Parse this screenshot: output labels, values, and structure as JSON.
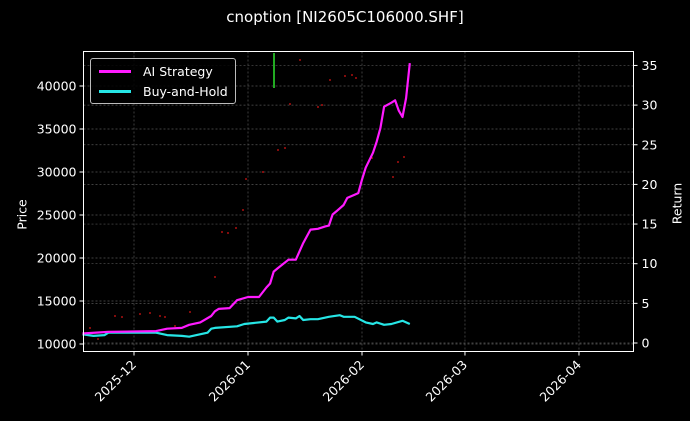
{
  "chart_data": {
    "type": "line",
    "title": "cnoption [NI2605C106000.SHF]",
    "xlabel": "",
    "ylabel": "Price",
    "y2label": "Return",
    "x_tick_labels": [
      "2025-12",
      "2026-01",
      "2026-02",
      "2026-03",
      "2026-04"
    ],
    "y_tick_labels": [
      "10000",
      "15000",
      "20000",
      "25000",
      "30000",
      "35000",
      "40000"
    ],
    "y2_tick_labels": [
      "0",
      "5",
      "10",
      "15",
      "20",
      "25",
      "30",
      "35"
    ],
    "ylim": [
      9200,
      44300
    ],
    "y2lim": [
      -1,
      36.5
    ],
    "grid": true,
    "legend_position": "upper left",
    "colors": {
      "ai_strategy": "#ff1aff",
      "buy_and_hold": "#26e6e6",
      "marker": "#22aa22",
      "scatter": "#aa1111",
      "grid": "#555555",
      "axes": "#ffffff",
      "background": "#000000"
    },
    "series": [
      {
        "name": "AI Strategy",
        "axis": "right",
        "points_date_return": [
          [
            "2025-11-17",
            1.2
          ],
          [
            "2025-11-24",
            1.4
          ],
          [
            "2025-12-07",
            1.5
          ],
          [
            "2025-12-10",
            1.8
          ],
          [
            "2025-12-14",
            1.9
          ],
          [
            "2025-12-16",
            2.3
          ],
          [
            "2025-12-19",
            2.6
          ],
          [
            "2025-12-22",
            3.4
          ],
          [
            "2025-12-23",
            4.0
          ],
          [
            "2025-12-24",
            4.3
          ],
          [
            "2025-12-27",
            4.4
          ],
          [
            "2025-12-29",
            5.4
          ],
          [
            "2026-01-01",
            5.8
          ],
          [
            "2026-01-04",
            5.8
          ],
          [
            "2026-01-06",
            7.0
          ],
          [
            "2026-01-07",
            7.5
          ],
          [
            "2026-01-08",
            9.0
          ],
          [
            "2026-01-09",
            9.4
          ],
          [
            "2026-01-12",
            10.5
          ],
          [
            "2026-01-14",
            10.5
          ],
          [
            "2026-01-16",
            12.6
          ],
          [
            "2026-01-18",
            14.3
          ],
          [
            "2026-01-20",
            14.4
          ],
          [
            "2026-01-22",
            14.7
          ],
          [
            "2026-01-23",
            14.8
          ],
          [
            "2026-01-24",
            16.2
          ],
          [
            "2026-01-25",
            16.6
          ],
          [
            "2026-01-27",
            17.4
          ],
          [
            "2026-01-28",
            18.3
          ],
          [
            "2026-01-30",
            18.7
          ],
          [
            "2026-01-31",
            18.9
          ],
          [
            "2026-02-01",
            20.6
          ],
          [
            "2026-02-02",
            22.1
          ],
          [
            "2026-02-04",
            24.0
          ],
          [
            "2026-02-05",
            25.4
          ],
          [
            "2026-02-06",
            27.1
          ],
          [
            "2026-02-07",
            29.8
          ],
          [
            "2026-02-09",
            30.3
          ],
          [
            "2026-02-10",
            30.6
          ],
          [
            "2026-02-11",
            29.3
          ],
          [
            "2026-02-12",
            28.5
          ],
          [
            "2026-02-13",
            30.9
          ],
          [
            "2026-02-14",
            35.3
          ]
        ]
      },
      {
        "name": "Buy-and-Hold",
        "axis": "right",
        "points_date_return": [
          [
            "2025-11-17",
            1.1
          ],
          [
            "2025-11-20",
            0.9
          ],
          [
            "2025-11-23",
            1.0
          ],
          [
            "2025-11-24",
            1.3
          ],
          [
            "2025-12-07",
            1.3
          ],
          [
            "2025-12-10",
            1.0
          ],
          [
            "2025-12-14",
            0.9
          ],
          [
            "2025-12-16",
            0.8
          ],
          [
            "2025-12-18",
            1.0
          ],
          [
            "2025-12-21",
            1.3
          ],
          [
            "2025-12-22",
            1.8
          ],
          [
            "2025-12-23",
            1.9
          ],
          [
            "2025-12-29",
            2.1
          ],
          [
            "2025-12-31",
            2.4
          ],
          [
            "2026-01-06",
            2.7
          ],
          [
            "2026-01-07",
            3.2
          ],
          [
            "2026-01-08",
            3.2
          ],
          [
            "2026-01-09",
            2.7
          ],
          [
            "2026-01-11",
            2.9
          ],
          [
            "2026-01-12",
            3.2
          ],
          [
            "2026-01-14",
            3.1
          ],
          [
            "2026-01-15",
            3.4
          ],
          [
            "2026-01-16",
            2.9
          ],
          [
            "2026-01-18",
            3.0
          ],
          [
            "2026-01-20",
            3.0
          ],
          [
            "2026-01-23",
            3.3
          ],
          [
            "2026-01-26",
            3.5
          ],
          [
            "2026-01-27",
            3.3
          ],
          [
            "2026-01-30",
            3.3
          ],
          [
            "2026-02-02",
            2.6
          ],
          [
            "2026-02-04",
            2.4
          ],
          [
            "2026-02-05",
            2.6
          ],
          [
            "2026-02-07",
            2.3
          ],
          [
            "2026-02-09",
            2.4
          ],
          [
            "2026-02-12",
            2.8
          ],
          [
            "2026-02-14",
            2.4
          ]
        ]
      }
    ],
    "annotations": [
      {
        "type": "vertical_marker",
        "color": "#22aa22",
        "date": "2026-01-08",
        "y_range_price": [
          39800,
          43800
        ]
      },
      {
        "type": "scatter_dots",
        "color": "#aa1111",
        "description": "faint red price dots scattered across plot"
      }
    ]
  },
  "legend": {
    "items": [
      {
        "label": "AI Strategy",
        "color": "#ff1aff"
      },
      {
        "label": "Buy-and-Hold",
        "color": "#26e6e6"
      }
    ]
  },
  "axes": {
    "left_label": "Price",
    "right_label": "Return"
  }
}
